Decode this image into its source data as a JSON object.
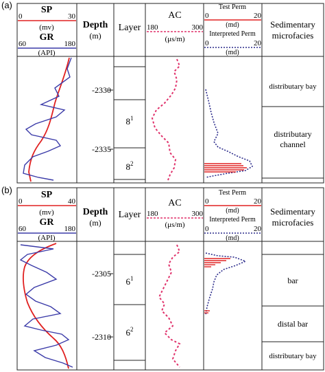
{
  "colors": {
    "sp": "#e02020",
    "gr": "#3a3aa8",
    "ac": "#e0306a",
    "test_perm": "#e02020",
    "interp_perm": "#2a2a8a"
  },
  "panels": [
    {
      "tag": "(a)",
      "headers": {
        "sp": "SP",
        "sp_min": "0",
        "sp_max": "30",
        "sp_unit": "(mv)",
        "gr": "GR",
        "gr_min": "60",
        "gr_max": "180",
        "gr_unit": "(API)",
        "depth": "Depth",
        "depth_unit": "(m)",
        "layer": "Layer",
        "ac": "AC",
        "ac_min": "180",
        "ac_max": "300",
        "ac_unit": "(μs/m)",
        "test_perm": "Test Perm",
        "tp_min": "0",
        "tp_max": "20",
        "tp_unit": "(md)",
        "interp_perm": "Interpreted Perm",
        "ip_min": "0",
        "ip_max": "20",
        "ip_unit": "(md)",
        "facies_1": "Sedimentary",
        "facies_2": "microfacies"
      },
      "depth_labels": [
        "-2330",
        "-2335"
      ],
      "layers": [
        {
          "main": "8",
          "sup": "1"
        },
        {
          "main": "8",
          "sup": "2"
        }
      ],
      "facies": [
        "distributary bay",
        "distributary",
        "channel"
      ]
    },
    {
      "tag": "(b)",
      "headers": {
        "sp": "SP",
        "sp_min": "0",
        "sp_max": "40",
        "sp_unit": "(mv)",
        "gr": "GR",
        "gr_min": "60",
        "gr_max": "180",
        "gr_unit": "(API)",
        "depth": "Depth",
        "depth_unit": "(m)",
        "layer": "Layer",
        "ac": "AC",
        "ac_min": "180",
        "ac_max": "300",
        "ac_unit": "(μs/m)",
        "test_perm": "Test Perm",
        "tp_min": "0",
        "tp_max": "20",
        "tp_unit": "(md)",
        "interp_perm": "Interpreted Perm",
        "ip_min": "0",
        "ip_max": "20",
        "ip_unit": "(md)",
        "facies_1": "Sedimentary",
        "facies_2": "microfacies"
      },
      "depth_labels": [
        "-2305",
        "-2310"
      ],
      "layers": [
        {
          "main": "6",
          "sup": "1"
        },
        {
          "main": "6",
          "sup": "2"
        }
      ],
      "facies": [
        "bar",
        "distal bar",
        "distributary bay"
      ]
    }
  ]
}
